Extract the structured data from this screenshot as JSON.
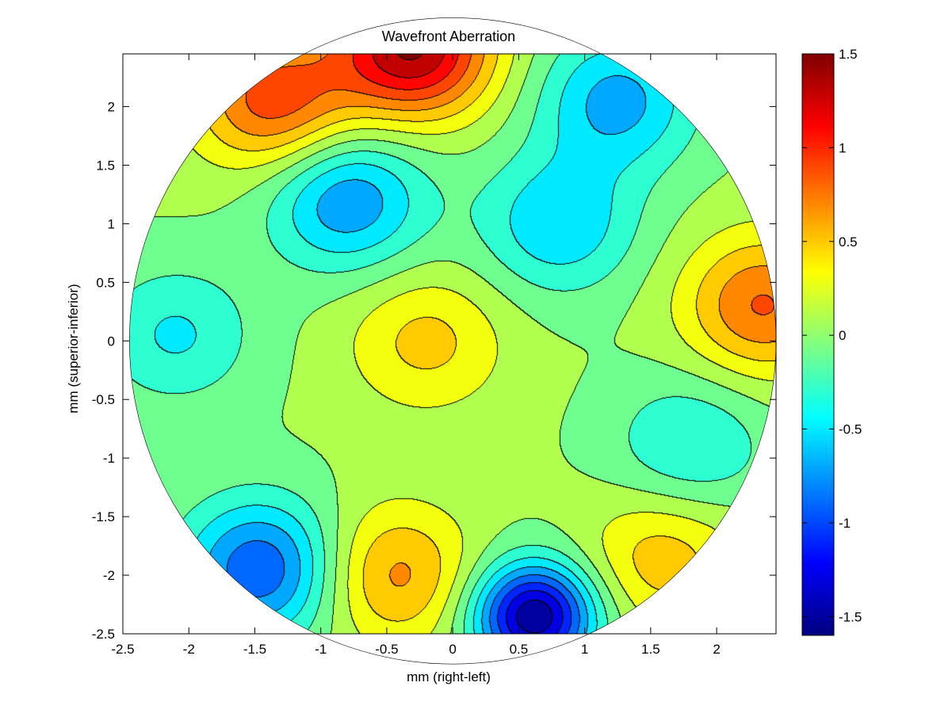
{
  "chart_data": {
    "type": "heatmap",
    "subtype": "filled-contour",
    "title": "Wavefront Aberration",
    "xlabel": "mm (right-left)",
    "ylabel": "mm (superior-inferior)",
    "xlim": [
      -2.5,
      2.45
    ],
    "ylim": [
      -2.5,
      2.45
    ],
    "xticks": [
      "-2.5",
      "-2",
      "-1.5",
      "-1",
      "-0.5",
      "0",
      "0.5",
      "1",
      "1.5",
      "2"
    ],
    "xtick_values": [
      -2.5,
      -2,
      -1.5,
      -1,
      -0.5,
      0,
      0.5,
      1,
      1.5,
      2
    ],
    "yticks": [
      "2",
      "1.5",
      "1",
      "0.5",
      "0",
      "-0.5",
      "-1",
      "-1.5",
      "-2",
      "-2.5"
    ],
    "ytick_values": [
      2,
      1.5,
      1,
      0.5,
      0,
      -0.5,
      -1,
      -1.5,
      -2,
      -2.5
    ],
    "pupil_radius": 2.45,
    "colormap": "jet",
    "colorbar": {
      "range": [
        -1.6,
        1.5
      ],
      "ticks": [
        "1.5",
        "1",
        "0.5",
        "0",
        "-0.5",
        "-1",
        "-1.5"
      ],
      "tick_values": [
        1.5,
        1,
        0.5,
        0,
        -0.5,
        -1,
        -1.5
      ],
      "placement": "right"
    },
    "contour_step": 0.2,
    "features": [
      {
        "x": 0.62,
        "y": -2.35,
        "value": -1.6,
        "kind": "min"
      },
      {
        "x": -0.8,
        "y": 1.2,
        "value": -0.8,
        "kind": "min"
      },
      {
        "x": 1.25,
        "y": 2.05,
        "value": -0.7,
        "kind": "min"
      },
      {
        "x": -1.45,
        "y": -1.95,
        "value": -1.0,
        "kind": "min"
      },
      {
        "x": 1.8,
        "y": -0.9,
        "value": -0.45,
        "kind": "min"
      },
      {
        "x": -2.1,
        "y": 0.05,
        "value": -0.45,
        "kind": "min"
      },
      {
        "x": 0.8,
        "y": 1.0,
        "value": -0.6,
        "kind": "min"
      },
      {
        "x": -0.45,
        "y": -2.0,
        "value": 0.65,
        "kind": "max"
      },
      {
        "x": -0.2,
        "y": 0.0,
        "value": 0.45,
        "kind": "max"
      },
      {
        "x": 1.6,
        "y": -1.85,
        "value": 0.5,
        "kind": "max"
      },
      {
        "x": 2.35,
        "y": 0.3,
        "value": 0.8,
        "kind": "max"
      },
      {
        "x": -0.3,
        "y": 2.5,
        "value": 1.4,
        "kind": "max"
      },
      {
        "x": -1.35,
        "y": 2.05,
        "value": 0.9,
        "kind": "max"
      }
    ],
    "grid": false
  }
}
